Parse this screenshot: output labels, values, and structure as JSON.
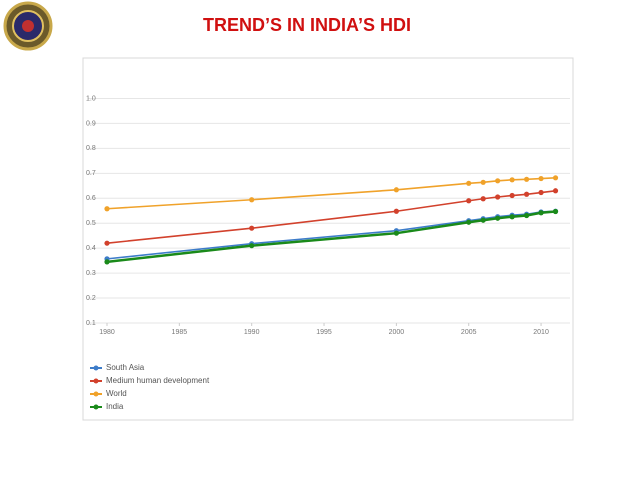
{
  "chart_data": {
    "type": "line",
    "title": "TREND’S  IN  INDIA’S  HDI",
    "x": [
      1980,
      1990,
      2000,
      2005,
      2006,
      2007,
      2008,
      2009,
      2010,
      2011
    ],
    "series": [
      {
        "name": "South Asia",
        "color": "#3d7cc9",
        "values": [
          0.357,
          0.418,
          0.47,
          0.51,
          0.518,
          0.526,
          0.532,
          0.536,
          0.545,
          0.548
        ]
      },
      {
        "name": "Medium human development",
        "color": "#d2412c",
        "values": [
          0.42,
          0.48,
          0.548,
          0.59,
          0.598,
          0.605,
          0.611,
          0.616,
          0.623,
          0.63
        ]
      },
      {
        "name": "World",
        "color": "#f0a22a",
        "values": [
          0.558,
          0.594,
          0.634,
          0.66,
          0.664,
          0.67,
          0.674,
          0.676,
          0.679,
          0.682
        ]
      },
      {
        "name": "India",
        "color": "#1a8a1a",
        "values": [
          0.345,
          0.41,
          0.46,
          0.504,
          0.512,
          0.52,
          0.526,
          0.531,
          0.542,
          0.547
        ]
      }
    ],
    "xlim": [
      1980,
      2012
    ],
    "xticks": [
      1980,
      1985,
      1990,
      1995,
      2000,
      2005,
      2010
    ],
    "ylim": [
      0.1,
      1.05
    ],
    "yticks": [
      {
        "value": 1,
        "label": "1.0"
      },
      0.9,
      0.8,
      0.7,
      0.6,
      0.5,
      0.4,
      0.3,
      0.2,
      0.1
    ],
    "grid": true,
    "legend": "bottom-left"
  }
}
